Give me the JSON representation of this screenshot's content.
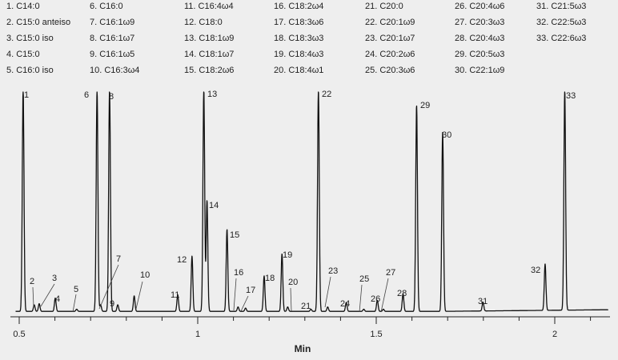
{
  "chart_data": {
    "type": "line",
    "title": "",
    "xlabel": "Min",
    "ylabel": "",
    "xlim": [
      0.49,
      2.15
    ],
    "ylim": [
      0,
      100
    ],
    "x_ticks": [
      {
        "value": 0.5,
        "label": "0.5"
      },
      {
        "value": 1.0,
        "label": "1"
      },
      {
        "value": 1.5,
        "label": "1.5"
      },
      {
        "value": 2.0,
        "label": "2"
      }
    ],
    "legend": [
      {
        "id": 1,
        "label": "C14:0"
      },
      {
        "id": 2,
        "label": "C15:0 anteiso"
      },
      {
        "id": 3,
        "label": "C15:0 iso"
      },
      {
        "id": 4,
        "label": "C15:0"
      },
      {
        "id": 5,
        "label": "C16:0 iso"
      },
      {
        "id": 6,
        "label": "C16:0"
      },
      {
        "id": 7,
        "label": "C16:1ω9"
      },
      {
        "id": 8,
        "label": "C16:1ω7"
      },
      {
        "id": 9,
        "label": "C16:1ω5"
      },
      {
        "id": 10,
        "label": "C16:3ω4"
      },
      {
        "id": 11,
        "label": "C16:4ω4"
      },
      {
        "id": 12,
        "label": "C18:0"
      },
      {
        "id": 13,
        "label": "C18:1ω9"
      },
      {
        "id": 14,
        "label": "C18:1ω7"
      },
      {
        "id": 15,
        "label": "C18:2ω6"
      },
      {
        "id": 16,
        "label": "C18:2ω4"
      },
      {
        "id": 17,
        "label": "C18:3ω6"
      },
      {
        "id": 18,
        "label": "C18:3ω3"
      },
      {
        "id": 19,
        "label": "C18:4ω3"
      },
      {
        "id": 20,
        "label": "C18:4ω1"
      },
      {
        "id": 21,
        "label": "C20:0"
      },
      {
        "id": 22,
        "label": "C20:1ω9"
      },
      {
        "id": 23,
        "label": "C20:1ω7"
      },
      {
        "id": 24,
        "label": "C20:2ω6"
      },
      {
        "id": 25,
        "label": "C20:3ω6"
      },
      {
        "id": 26,
        "label": "C20:4ω6"
      },
      {
        "id": 27,
        "label": "C20:3ω3"
      },
      {
        "id": 28,
        "label": "C20:4ω3"
      },
      {
        "id": 29,
        "label": "C20:5ω3"
      },
      {
        "id": 30,
        "label": "C22:1ω9"
      },
      {
        "id": 31,
        "label": "C21:5ω3"
      },
      {
        "id": 32,
        "label": "C22:5ω3"
      },
      {
        "id": 33,
        "label": "C22:6ω3"
      }
    ],
    "peaks": [
      {
        "id": 1,
        "x": 0.511,
        "height": 100,
        "label": "1"
      },
      {
        "id": 2,
        "x": 0.542,
        "height": 3,
        "label": "2"
      },
      {
        "id": 3,
        "x": 0.556,
        "height": 3.5,
        "label": "3"
      },
      {
        "id": 4,
        "x": 0.601,
        "height": 6,
        "label": "4"
      },
      {
        "id": 5,
        "x": 0.661,
        "height": 1,
        "label": "5"
      },
      {
        "id": 6,
        "x": 0.718,
        "height": 100,
        "label": "6"
      },
      {
        "id": 7,
        "x": 0.728,
        "height": 3,
        "label": "7"
      },
      {
        "id": 8,
        "x": 0.753,
        "height": 100,
        "label": "8"
      },
      {
        "id": 9,
        "x": 0.776,
        "height": 3,
        "label": "9"
      },
      {
        "id": 10,
        "x": 0.822,
        "height": 7,
        "label": "10"
      },
      {
        "id": 11,
        "x": 0.944,
        "height": 7.5,
        "label": "11"
      },
      {
        "id": 12,
        "x": 0.984,
        "height": 25,
        "label": "12"
      },
      {
        "id": 13,
        "x": 1.017,
        "height": 100,
        "label": "13"
      },
      {
        "id": 14,
        "x": 1.026,
        "height": 50,
        "label": "14"
      },
      {
        "id": 15,
        "x": 1.082,
        "height": 37,
        "label": "15"
      },
      {
        "id": 16,
        "x": 1.113,
        "height": 2,
        "label": "16"
      },
      {
        "id": 17,
        "x": 1.134,
        "height": 1.5,
        "label": "17"
      },
      {
        "id": 18,
        "x": 1.186,
        "height": 16,
        "label": "18"
      },
      {
        "id": 19,
        "x": 1.236,
        "height": 26,
        "label": "19"
      },
      {
        "id": 20,
        "x": 1.252,
        "height": 2,
        "label": "20"
      },
      {
        "id": 21,
        "x": 1.317,
        "height": 1,
        "label": "21"
      },
      {
        "id": 22,
        "x": 1.338,
        "height": 100,
        "label": "22"
      },
      {
        "id": 23,
        "x": 1.364,
        "height": 2,
        "label": "23"
      },
      {
        "id": 24,
        "x": 1.416,
        "height": 4,
        "label": "24"
      },
      {
        "id": 25,
        "x": 1.465,
        "height": 1,
        "label": "25"
      },
      {
        "id": 26,
        "x": 1.503,
        "height": 5,
        "label": "26"
      },
      {
        "id": 27,
        "x": 1.52,
        "height": 1,
        "label": "27"
      },
      {
        "id": 28,
        "x": 1.575,
        "height": 8,
        "label": "28"
      },
      {
        "id": 29,
        "x": 1.613,
        "height": 93,
        "label": "29"
      },
      {
        "id": 30,
        "x": 1.686,
        "height": 81,
        "label": "30"
      },
      {
        "id": 31,
        "x": 1.799,
        "height": 4,
        "label": "31"
      },
      {
        "id": 32,
        "x": 1.973,
        "height": 21,
        "label": "32"
      },
      {
        "id": 33,
        "x": 2.028,
        "height": 99,
        "label": "33"
      }
    ],
    "colors": {
      "trace": "#111111",
      "background": "#eeeeee"
    }
  }
}
